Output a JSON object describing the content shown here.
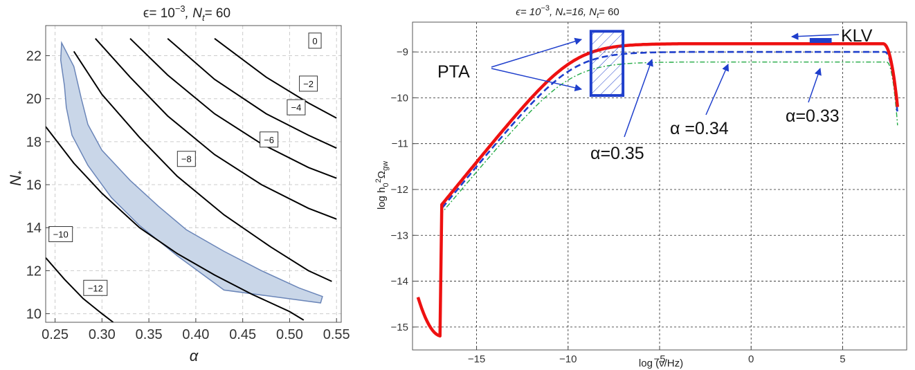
{
  "chart_data": [
    {
      "type": "contour",
      "title": "ϵ= 10⁻³, N_t= 60",
      "title_parts": {
        "eps": "ϵ= 10",
        "eps_exp": "−3",
        "nt": ", N",
        "nt_sub": "t",
        "nt_val": "= 60"
      },
      "xlabel": "α",
      "ylabel": "N",
      "ylabel_sub": "*",
      "xlim": [
        0.24,
        0.555
      ],
      "ylim": [
        9.6,
        23.4
      ],
      "xticks": [
        0.25,
        0.3,
        0.35,
        0.4,
        0.45,
        0.5,
        0.55
      ],
      "xtick_labels": [
        "0.25",
        "0.30",
        "0.35",
        "0.40",
        "0.45",
        "0.50",
        "0.55"
      ],
      "yticks": [
        10,
        12,
        14,
        16,
        18,
        20,
        22
      ],
      "ytick_labels": [
        "10",
        "12",
        "14",
        "16",
        "18",
        "20",
        "22"
      ],
      "grid": true,
      "contours": [
        {
          "label": "0",
          "points": [
            [
              0.42,
              22.8
            ],
            [
              0.475,
              21.0
            ],
            [
              0.52,
              19.8
            ],
            [
              0.55,
              19.1
            ]
          ],
          "label_at": [
            0.527,
            22.7
          ]
        },
        {
          "label": "−2",
          "points": [
            [
              0.37,
              22.8
            ],
            [
              0.42,
              20.9
            ],
            [
              0.475,
              19.3
            ],
            [
              0.52,
              18.3
            ],
            [
              0.55,
              17.7
            ]
          ],
          "label_at": [
            0.52,
            20.7
          ]
        },
        {
          "label": "−4",
          "points": [
            [
              0.33,
              22.8
            ],
            [
              0.37,
              21.1
            ],
            [
              0.42,
              19.3
            ],
            [
              0.47,
              17.9
            ],
            [
              0.52,
              16.8
            ],
            [
              0.55,
              16.3
            ]
          ],
          "label_at": [
            0.507,
            19.6
          ]
        },
        {
          "label": "−6",
          "points": [
            [
              0.293,
              22.8
            ],
            [
              0.33,
              21.0
            ],
            [
              0.37,
              19.2
            ],
            [
              0.42,
              17.4
            ],
            [
              0.47,
              16.0
            ],
            [
              0.52,
              14.9
            ],
            [
              0.55,
              14.4
            ]
          ],
          "label_at": [
            0.478,
            18.1
          ]
        },
        {
          "label": "−8",
          "points": [
            [
              0.27,
              22.2
            ],
            [
              0.3,
              20.2
            ],
            [
              0.34,
              18.2
            ],
            [
              0.38,
              16.4
            ],
            [
              0.43,
              14.6
            ],
            [
              0.48,
              13.1
            ],
            [
              0.52,
              12.0
            ],
            [
              0.545,
              11.5
            ]
          ],
          "label_at": [
            0.39,
            17.2
          ]
        },
        {
          "label": "−10",
          "points": [
            [
              0.24,
              18.7
            ],
            [
              0.27,
              17.0
            ],
            [
              0.3,
              15.6
            ],
            [
              0.34,
              14.0
            ],
            [
              0.38,
              12.8
            ],
            [
              0.42,
              11.8
            ],
            [
              0.46,
              10.9
            ],
            [
              0.5,
              10.1
            ],
            [
              0.515,
              9.7
            ]
          ],
          "label_at": [
            0.256,
            13.7
          ]
        },
        {
          "label": "−12",
          "points": [
            [
              0.24,
              12.6
            ],
            [
              0.26,
              11.6
            ],
            [
              0.28,
              10.7
            ],
            [
              0.3,
              10.0
            ],
            [
              0.312,
              9.6
            ]
          ],
          "label_at": [
            0.293,
            11.2
          ]
        }
      ],
      "region": {
        "fill": "#c9d6e8",
        "stroke": "#6a85b8",
        "points": [
          [
            0.257,
            22.6
          ],
          [
            0.27,
            21.5
          ],
          [
            0.278,
            20.0
          ],
          [
            0.285,
            18.8
          ],
          [
            0.3,
            17.6
          ],
          [
            0.33,
            16.2
          ],
          [
            0.36,
            15.0
          ],
          [
            0.39,
            13.9
          ],
          [
            0.43,
            12.9
          ],
          [
            0.47,
            12.0
          ],
          [
            0.51,
            11.2
          ],
          [
            0.535,
            10.8
          ],
          [
            0.533,
            10.5
          ],
          [
            0.43,
            11.1
          ],
          [
            0.38,
            12.7
          ],
          [
            0.34,
            14.1
          ],
          [
            0.31,
            15.4
          ],
          [
            0.285,
            16.9
          ],
          [
            0.268,
            18.3
          ],
          [
            0.262,
            19.6
          ],
          [
            0.26,
            20.6
          ],
          [
            0.256,
            21.8
          ]
        ]
      }
    },
    {
      "type": "line",
      "title": "ϵ= 10⁻³, N*=16, N_t= 60",
      "title_parts": {
        "eps": "ϵ= 10",
        "eps_exp": "−3",
        "ns": ", N",
        "ns_sub": "*",
        "ns_val": "=16,  N",
        "nt_sub": "t",
        "nt_val": "= 60"
      },
      "xlabel": "log (ν/Hz)",
      "ylabel": "log h",
      "ylabel_sub": "0",
      "ylabel_sup": "2",
      "ylabel_tail": "Ω",
      "ylabel_tail_sub": "gw",
      "xlim": [
        -18.5,
        8.5
      ],
      "ylim": [
        -15.5,
        -8.35
      ],
      "xticks": [
        -15,
        -10,
        -5,
        0,
        5
      ],
      "xtick_labels": [
        "−15",
        "−10",
        "−5",
        "0",
        "5"
      ],
      "yticks": [
        -15,
        -14,
        -13,
        -12,
        -11,
        -10,
        -9
      ],
      "ytick_labels": [
        "−15",
        "−14",
        "−13",
        "−12",
        "−11",
        "−10",
        "−9"
      ],
      "grid": true,
      "series": [
        {
          "name": "α=0.35",
          "color": "#ee1111",
          "dash": "solid",
          "plateau": -8.82,
          "knee": -8.0,
          "cut": 7.2,
          "end": [
            8.0,
            -10.2
          ]
        },
        {
          "name": "α=0.34",
          "color": "#1f3fcc",
          "dash": "dashed",
          "plateau": -9.0,
          "knee": -8.3,
          "cut": 7.3,
          "end": [
            8.0,
            -10.35
          ]
        },
        {
          "name": "α=0.33",
          "color": "#22aa44",
          "dash": "dashdot",
          "plateau": -9.22,
          "knee": -8.55,
          "cut": 7.4,
          "end": [
            8.0,
            -10.6
          ]
        }
      ],
      "min_point": [
        -16.9,
        -15.2
      ],
      "start_point": [
        -18.2,
        -14.35
      ],
      "slope": 0.86,
      "pta_box": {
        "x": [
          -8.75,
          -7.0
        ],
        "y": [
          -9.95,
          -8.55
        ]
      },
      "klv_mark": {
        "x": [
          3.2,
          4.4
        ],
        "y": -8.75
      },
      "annotations": {
        "pta": "PTA",
        "klv": "KLV",
        "a35": "α=0.35",
        "a34": "α =0.34",
        "a33": "α=0.33"
      }
    }
  ]
}
